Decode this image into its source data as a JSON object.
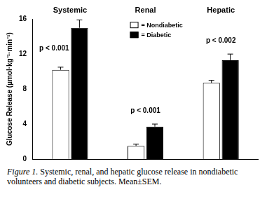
{
  "chart_data": {
    "type": "bar",
    "categories": [
      "Systemic",
      "Renal",
      "Hepatic"
    ],
    "ylabel": "Glucose Release (µmol·kg⁻¹·min⁻¹)",
    "ylim": [
      0,
      16
    ],
    "yticks": [
      0,
      4,
      8,
      12,
      16
    ],
    "grid": false,
    "legend": "top",
    "series": [
      {
        "name": "= Nondiabetic",
        "color": "#ffffff",
        "values": [
          10.2,
          1.5,
          8.7
        ],
        "errors": [
          0.3,
          0.2,
          0.3
        ]
      },
      {
        "name": "= Diabetic",
        "color": "#000000",
        "values": [
          15.0,
          3.7,
          11.3
        ],
        "errors": [
          0.9,
          0.3,
          0.7
        ]
      }
    ],
    "annotations": [
      {
        "text": "p < 0.001",
        "category": "Systemic"
      },
      {
        "text": "p < 0.001",
        "category": "Renal"
      },
      {
        "text": "p < 0.002",
        "category": "Hepatic"
      }
    ],
    "caption": {
      "label": "Figure 1.",
      "text": "Systemic, renal, and hepatic glucose release in nondiabetic volunteers and diabetic subjects. Mean±SEM."
    }
  }
}
